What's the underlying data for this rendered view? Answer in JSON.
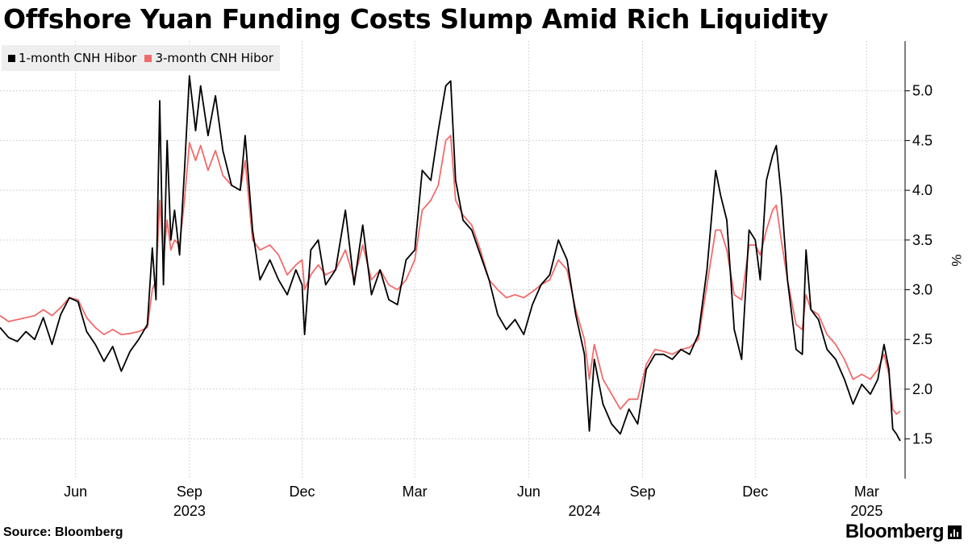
{
  "header": {
    "title": "Offshore Yuan Funding Costs Slump Amid Rich Liquidity"
  },
  "legend": {
    "items": [
      {
        "label": "1-month CNH Hibor",
        "color": "#000000"
      },
      {
        "label": "3-month CNH Hibor",
        "color": "#f26b6b"
      }
    ]
  },
  "footer": {
    "source": "Source: Bloomberg",
    "brand": "Bloomberg"
  },
  "chart_data": {
    "type": "line",
    "title": "Offshore Yuan Funding Costs Slump Amid Rich Liquidity",
    "ylabel": "%",
    "ylim": [
      1.1,
      5.5
    ],
    "y_ticks": [
      1.5,
      2.0,
      2.5,
      3.0,
      3.5,
      4.0,
      4.5,
      5.0
    ],
    "y_tick_labels": [
      "1.5",
      "2.0",
      "2.5",
      "3.0",
      "3.5",
      "4.0",
      "4.5",
      "5.0"
    ],
    "y_axis_side": "right",
    "xlim": [
      "2023-04-01",
      "2025-04-01"
    ],
    "x_ticks": [
      {
        "date": "2023-06-01",
        "label": "Jun"
      },
      {
        "date": "2023-09-01",
        "label": "Sep"
      },
      {
        "date": "2023-12-01",
        "label": "Dec"
      },
      {
        "date": "2024-03-01",
        "label": "Mar"
      },
      {
        "date": "2024-06-01",
        "label": "Jun"
      },
      {
        "date": "2024-09-01",
        "label": "Sep"
      },
      {
        "date": "2024-12-01",
        "label": "Dec"
      },
      {
        "date": "2025-03-01",
        "label": "Mar"
      }
    ],
    "year_labels": [
      {
        "date": "2023-09-01",
        "label": "2023"
      },
      {
        "date": "2024-07-16",
        "label": "2024"
      },
      {
        "date": "2025-03-01",
        "label": "2025"
      }
    ],
    "grid": "dotted",
    "legend_position": "top-left",
    "series": [
      {
        "name": "1-month CNH Hibor",
        "color": "#000000",
        "points": [
          [
            "2023-04-01",
            2.62
          ],
          [
            "2023-04-08",
            2.52
          ],
          [
            "2023-04-15",
            2.48
          ],
          [
            "2023-04-22",
            2.58
          ],
          [
            "2023-04-29",
            2.5
          ],
          [
            "2023-05-06",
            2.72
          ],
          [
            "2023-05-13",
            2.45
          ],
          [
            "2023-05-20",
            2.75
          ],
          [
            "2023-05-27",
            2.92
          ],
          [
            "2023-06-03",
            2.88
          ],
          [
            "2023-06-10",
            2.58
          ],
          [
            "2023-06-17",
            2.45
          ],
          [
            "2023-06-24",
            2.28
          ],
          [
            "2023-07-01",
            2.43
          ],
          [
            "2023-07-08",
            2.18
          ],
          [
            "2023-07-15",
            2.38
          ],
          [
            "2023-07-22",
            2.5
          ],
          [
            "2023-07-29",
            2.65
          ],
          [
            "2023-08-02",
            3.42
          ],
          [
            "2023-08-05",
            2.9
          ],
          [
            "2023-08-08",
            4.9
          ],
          [
            "2023-08-11",
            3.05
          ],
          [
            "2023-08-14",
            4.5
          ],
          [
            "2023-08-17",
            3.5
          ],
          [
            "2023-08-20",
            3.8
          ],
          [
            "2023-08-24",
            3.35
          ],
          [
            "2023-08-28",
            4.2
          ],
          [
            "2023-09-01",
            5.15
          ],
          [
            "2023-09-06",
            4.6
          ],
          [
            "2023-09-10",
            5.05
          ],
          [
            "2023-09-16",
            4.55
          ],
          [
            "2023-09-22",
            4.95
          ],
          [
            "2023-09-28",
            4.4
          ],
          [
            "2023-10-05",
            4.05
          ],
          [
            "2023-10-12",
            4.0
          ],
          [
            "2023-10-16",
            4.55
          ],
          [
            "2023-10-22",
            3.6
          ],
          [
            "2023-10-28",
            3.1
          ],
          [
            "2023-11-05",
            3.3
          ],
          [
            "2023-11-12",
            3.1
          ],
          [
            "2023-11-19",
            2.95
          ],
          [
            "2023-11-26",
            3.2
          ],
          [
            "2023-12-01",
            3.05
          ],
          [
            "2023-12-03",
            2.55
          ],
          [
            "2023-12-08",
            3.4
          ],
          [
            "2023-12-14",
            3.5
          ],
          [
            "2023-12-20",
            3.05
          ],
          [
            "2023-12-28",
            3.2
          ],
          [
            "2024-01-05",
            3.8
          ],
          [
            "2024-01-12",
            3.05
          ],
          [
            "2024-01-19",
            3.65
          ],
          [
            "2024-01-26",
            2.95
          ],
          [
            "2024-02-02",
            3.2
          ],
          [
            "2024-02-09",
            2.9
          ],
          [
            "2024-02-16",
            2.85
          ],
          [
            "2024-02-23",
            3.3
          ],
          [
            "2024-03-01",
            3.4
          ],
          [
            "2024-03-07",
            4.2
          ],
          [
            "2024-03-14",
            4.1
          ],
          [
            "2024-03-20",
            4.6
          ],
          [
            "2024-03-26",
            5.05
          ],
          [
            "2024-03-30",
            5.1
          ],
          [
            "2024-04-03",
            4.1
          ],
          [
            "2024-04-09",
            3.7
          ],
          [
            "2024-04-16",
            3.6
          ],
          [
            "2024-04-23",
            3.35
          ],
          [
            "2024-04-30",
            3.1
          ],
          [
            "2024-05-07",
            2.75
          ],
          [
            "2024-05-14",
            2.6
          ],
          [
            "2024-05-21",
            2.7
          ],
          [
            "2024-05-28",
            2.55
          ],
          [
            "2024-06-04",
            2.85
          ],
          [
            "2024-06-11",
            3.05
          ],
          [
            "2024-06-18",
            3.15
          ],
          [
            "2024-06-25",
            3.5
          ],
          [
            "2024-07-02",
            3.3
          ],
          [
            "2024-07-09",
            2.75
          ],
          [
            "2024-07-16",
            2.35
          ],
          [
            "2024-07-20",
            1.58
          ],
          [
            "2024-07-24",
            2.3
          ],
          [
            "2024-07-31",
            1.85
          ],
          [
            "2024-08-07",
            1.65
          ],
          [
            "2024-08-14",
            1.55
          ],
          [
            "2024-08-21",
            1.8
          ],
          [
            "2024-08-28",
            1.65
          ],
          [
            "2024-09-04",
            2.2
          ],
          [
            "2024-09-11",
            2.35
          ],
          [
            "2024-09-18",
            2.35
          ],
          [
            "2024-09-25",
            2.3
          ],
          [
            "2024-10-02",
            2.4
          ],
          [
            "2024-10-09",
            2.35
          ],
          [
            "2024-10-16",
            2.55
          ],
          [
            "2024-10-23",
            3.2
          ],
          [
            "2024-10-30",
            4.2
          ],
          [
            "2024-11-03",
            3.95
          ],
          [
            "2024-11-08",
            3.7
          ],
          [
            "2024-11-14",
            2.6
          ],
          [
            "2024-11-20",
            2.3
          ],
          [
            "2024-11-26",
            3.6
          ],
          [
            "2024-12-01",
            3.5
          ],
          [
            "2024-12-05",
            3.1
          ],
          [
            "2024-12-10",
            4.1
          ],
          [
            "2024-12-15",
            4.35
          ],
          [
            "2024-12-18",
            4.45
          ],
          [
            "2024-12-22",
            3.95
          ],
          [
            "2024-12-27",
            3.1
          ],
          [
            "2025-01-03",
            2.4
          ],
          [
            "2025-01-08",
            2.35
          ],
          [
            "2025-01-11",
            3.4
          ],
          [
            "2025-01-15",
            2.8
          ],
          [
            "2025-01-21",
            2.7
          ],
          [
            "2025-01-28",
            2.4
          ],
          [
            "2025-02-04",
            2.3
          ],
          [
            "2025-02-11",
            2.1
          ],
          [
            "2025-02-18",
            1.85
          ],
          [
            "2025-02-25",
            2.05
          ],
          [
            "2025-03-04",
            1.95
          ],
          [
            "2025-03-10",
            2.1
          ],
          [
            "2025-03-15",
            2.45
          ],
          [
            "2025-03-19",
            2.2
          ],
          [
            "2025-03-22",
            1.6
          ],
          [
            "2025-03-25",
            1.55
          ],
          [
            "2025-03-28",
            1.48
          ]
        ]
      },
      {
        "name": "3-month CNH Hibor",
        "color": "#f26b6b",
        "points": [
          [
            "2023-04-01",
            2.74
          ],
          [
            "2023-04-08",
            2.68
          ],
          [
            "2023-04-15",
            2.7
          ],
          [
            "2023-04-22",
            2.72
          ],
          [
            "2023-04-29",
            2.74
          ],
          [
            "2023-05-06",
            2.8
          ],
          [
            "2023-05-13",
            2.74
          ],
          [
            "2023-05-20",
            2.82
          ],
          [
            "2023-05-27",
            2.92
          ],
          [
            "2023-06-03",
            2.9
          ],
          [
            "2023-06-10",
            2.72
          ],
          [
            "2023-06-17",
            2.62
          ],
          [
            "2023-06-24",
            2.55
          ],
          [
            "2023-07-01",
            2.6
          ],
          [
            "2023-07-08",
            2.55
          ],
          [
            "2023-07-15",
            2.56
          ],
          [
            "2023-07-22",
            2.58
          ],
          [
            "2023-07-29",
            2.62
          ],
          [
            "2023-08-02",
            3.0
          ],
          [
            "2023-08-05",
            3.1
          ],
          [
            "2023-08-08",
            3.9
          ],
          [
            "2023-08-11",
            3.3
          ],
          [
            "2023-08-14",
            3.7
          ],
          [
            "2023-08-17",
            3.4
          ],
          [
            "2023-08-20",
            3.5
          ],
          [
            "2023-08-24",
            3.45
          ],
          [
            "2023-08-28",
            3.9
          ],
          [
            "2023-09-01",
            4.48
          ],
          [
            "2023-09-06",
            4.3
          ],
          [
            "2023-09-10",
            4.45
          ],
          [
            "2023-09-16",
            4.2
          ],
          [
            "2023-09-22",
            4.4
          ],
          [
            "2023-09-28",
            4.15
          ],
          [
            "2023-10-05",
            4.05
          ],
          [
            "2023-10-12",
            4.0
          ],
          [
            "2023-10-16",
            4.3
          ],
          [
            "2023-10-22",
            3.5
          ],
          [
            "2023-10-28",
            3.4
          ],
          [
            "2023-11-05",
            3.45
          ],
          [
            "2023-11-12",
            3.35
          ],
          [
            "2023-11-19",
            3.15
          ],
          [
            "2023-11-26",
            3.25
          ],
          [
            "2023-12-01",
            3.3
          ],
          [
            "2023-12-03",
            3.0
          ],
          [
            "2023-12-08",
            3.15
          ],
          [
            "2023-12-14",
            3.25
          ],
          [
            "2023-12-20",
            3.15
          ],
          [
            "2023-12-28",
            3.2
          ],
          [
            "2024-01-05",
            3.4
          ],
          [
            "2024-01-12",
            3.1
          ],
          [
            "2024-01-19",
            3.45
          ],
          [
            "2024-01-26",
            3.1
          ],
          [
            "2024-02-02",
            3.2
          ],
          [
            "2024-02-09",
            3.05
          ],
          [
            "2024-02-16",
            3.0
          ],
          [
            "2024-02-23",
            3.1
          ],
          [
            "2024-03-01",
            3.3
          ],
          [
            "2024-03-07",
            3.8
          ],
          [
            "2024-03-14",
            3.9
          ],
          [
            "2024-03-20",
            4.05
          ],
          [
            "2024-03-26",
            4.5
          ],
          [
            "2024-03-30",
            4.55
          ],
          [
            "2024-04-03",
            3.9
          ],
          [
            "2024-04-09",
            3.75
          ],
          [
            "2024-04-16",
            3.65
          ],
          [
            "2024-04-23",
            3.4
          ],
          [
            "2024-04-30",
            3.1
          ],
          [
            "2024-05-07",
            3.0
          ],
          [
            "2024-05-14",
            2.92
          ],
          [
            "2024-05-21",
            2.95
          ],
          [
            "2024-05-28",
            2.92
          ],
          [
            "2024-06-04",
            2.98
          ],
          [
            "2024-06-11",
            3.05
          ],
          [
            "2024-06-18",
            3.1
          ],
          [
            "2024-06-25",
            3.3
          ],
          [
            "2024-07-02",
            3.2
          ],
          [
            "2024-07-09",
            2.8
          ],
          [
            "2024-07-16",
            2.5
          ],
          [
            "2024-07-20",
            2.1
          ],
          [
            "2024-07-24",
            2.45
          ],
          [
            "2024-07-31",
            2.1
          ],
          [
            "2024-08-07",
            1.95
          ],
          [
            "2024-08-14",
            1.8
          ],
          [
            "2024-08-21",
            1.9
          ],
          [
            "2024-08-28",
            1.9
          ],
          [
            "2024-09-04",
            2.25
          ],
          [
            "2024-09-11",
            2.4
          ],
          [
            "2024-09-18",
            2.38
          ],
          [
            "2024-09-25",
            2.35
          ],
          [
            "2024-10-02",
            2.4
          ],
          [
            "2024-10-09",
            2.42
          ],
          [
            "2024-10-16",
            2.5
          ],
          [
            "2024-10-23",
            3.05
          ],
          [
            "2024-10-30",
            3.6
          ],
          [
            "2024-11-03",
            3.6
          ],
          [
            "2024-11-08",
            3.4
          ],
          [
            "2024-11-14",
            2.95
          ],
          [
            "2024-11-20",
            2.9
          ],
          [
            "2024-11-26",
            3.45
          ],
          [
            "2024-12-01",
            3.45
          ],
          [
            "2024-12-05",
            3.35
          ],
          [
            "2024-12-10",
            3.6
          ],
          [
            "2024-12-15",
            3.8
          ],
          [
            "2024-12-18",
            3.85
          ],
          [
            "2024-12-22",
            3.5
          ],
          [
            "2024-12-27",
            3.1
          ],
          [
            "2025-01-03",
            2.65
          ],
          [
            "2025-01-08",
            2.6
          ],
          [
            "2025-01-11",
            2.95
          ],
          [
            "2025-01-15",
            2.8
          ],
          [
            "2025-01-21",
            2.75
          ],
          [
            "2025-01-28",
            2.55
          ],
          [
            "2025-02-04",
            2.45
          ],
          [
            "2025-02-11",
            2.3
          ],
          [
            "2025-02-18",
            2.1
          ],
          [
            "2025-02-25",
            2.15
          ],
          [
            "2025-03-04",
            2.1
          ],
          [
            "2025-03-10",
            2.2
          ],
          [
            "2025-03-15",
            2.35
          ],
          [
            "2025-03-19",
            2.15
          ],
          [
            "2025-03-22",
            1.8
          ],
          [
            "2025-03-25",
            1.75
          ],
          [
            "2025-03-28",
            1.78
          ]
        ]
      }
    ]
  }
}
